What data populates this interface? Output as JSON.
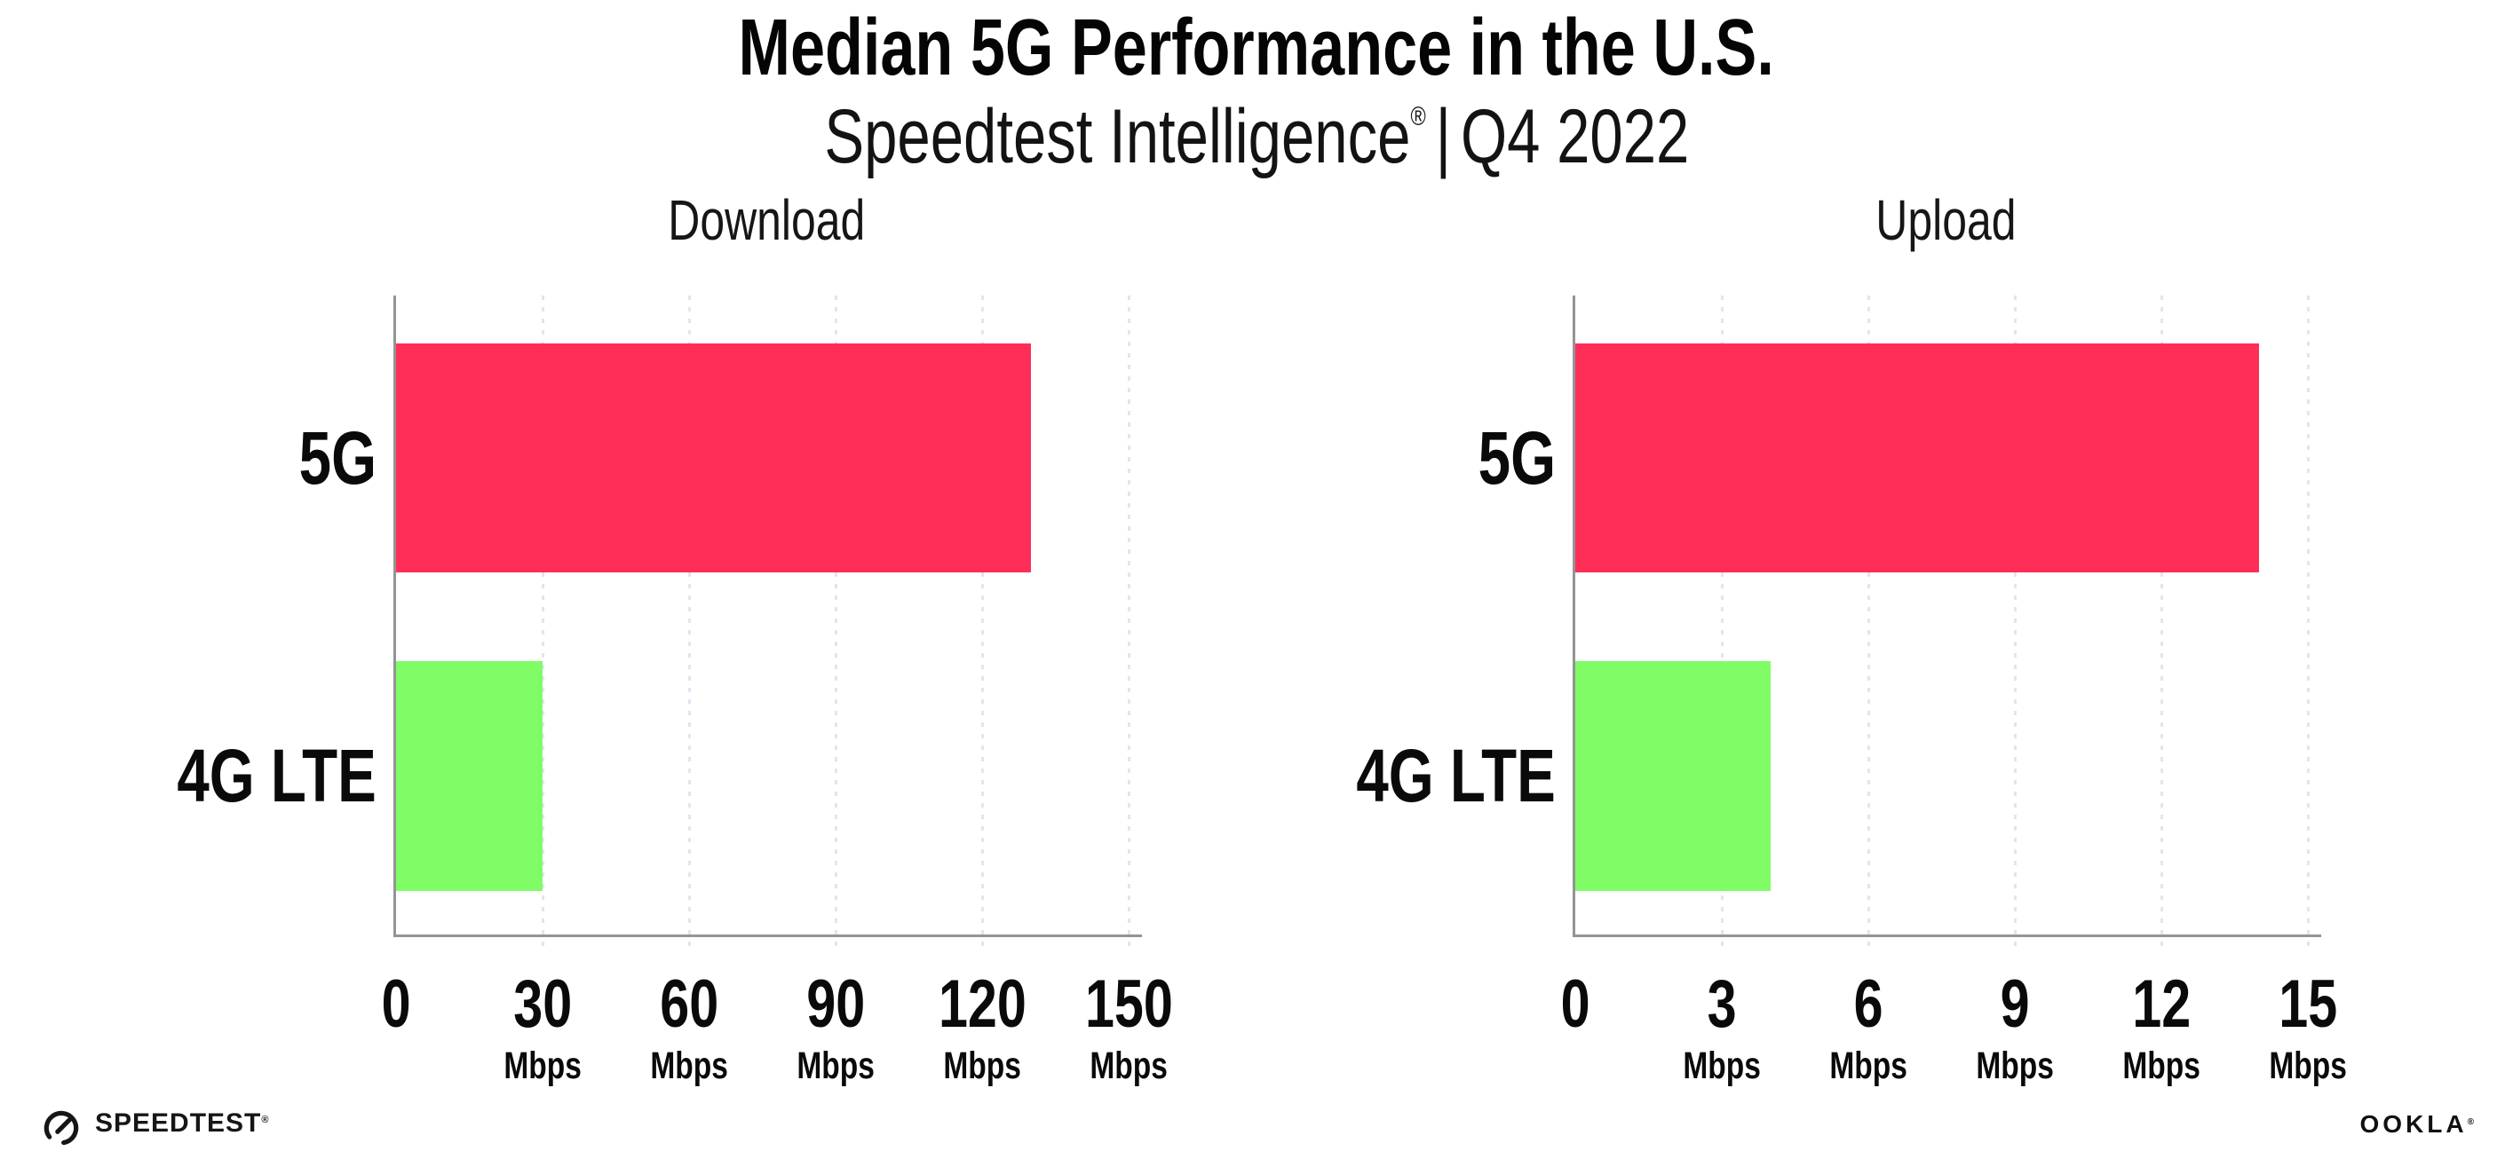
{
  "title": "Median 5G Performance in the U.S.",
  "subtitle": {
    "brand": "Speedtest Intelligence",
    "registered": "®",
    "separator": "|",
    "period": "Q4 2022"
  },
  "colors": {
    "bar_5g": "#FF2E59",
    "bar_4g_lte": "#80FC66",
    "axis": "#949494",
    "gridline": "#E4E4EF",
    "text": "#0C0C0C",
    "background": "#FFFFFF"
  },
  "chart_data": [
    {
      "type": "bar",
      "orientation": "horizontal",
      "title": "Download",
      "categories": [
        "5G",
        "4G LTE"
      ],
      "values": [
        130,
        30
      ],
      "unit": "Mbps",
      "xlim": [
        0,
        150
      ],
      "xticks": [
        0,
        30,
        60,
        90,
        120,
        150
      ],
      "tick_labels": [
        {
          "value": "0",
          "unit": ""
        },
        {
          "value": "30",
          "unit": "Mbps"
        },
        {
          "value": "60",
          "unit": "Mbps"
        },
        {
          "value": "90",
          "unit": "Mbps"
        },
        {
          "value": "120",
          "unit": "Mbps"
        },
        {
          "value": "150",
          "unit": "Mbps"
        }
      ],
      "bar_colors": [
        "#FF2E59",
        "#80FC66"
      ],
      "grid": "vertical-dotted",
      "legend": "none"
    },
    {
      "type": "bar",
      "orientation": "horizontal",
      "title": "Upload",
      "categories": [
        "5G",
        "4G LTE"
      ],
      "values": [
        14,
        4
      ],
      "unit": "Mbps",
      "xlim": [
        0,
        15
      ],
      "xticks": [
        0,
        3,
        6,
        9,
        12,
        15
      ],
      "tick_labels": [
        {
          "value": "0",
          "unit": ""
        },
        {
          "value": "3",
          "unit": "Mbps"
        },
        {
          "value": "6",
          "unit": "Mbps"
        },
        {
          "value": "9",
          "unit": "Mbps"
        },
        {
          "value": "12",
          "unit": "Mbps"
        },
        {
          "value": "15",
          "unit": "Mbps"
        }
      ],
      "bar_colors": [
        "#FF2E59",
        "#80FC66"
      ],
      "grid": "vertical-dotted",
      "legend": "none"
    }
  ],
  "footer": {
    "speedtest_label": "SPEEDTEST",
    "speedtest_trademark": "®",
    "ookla_label": "OOKLA",
    "ookla_trademark": "®"
  }
}
